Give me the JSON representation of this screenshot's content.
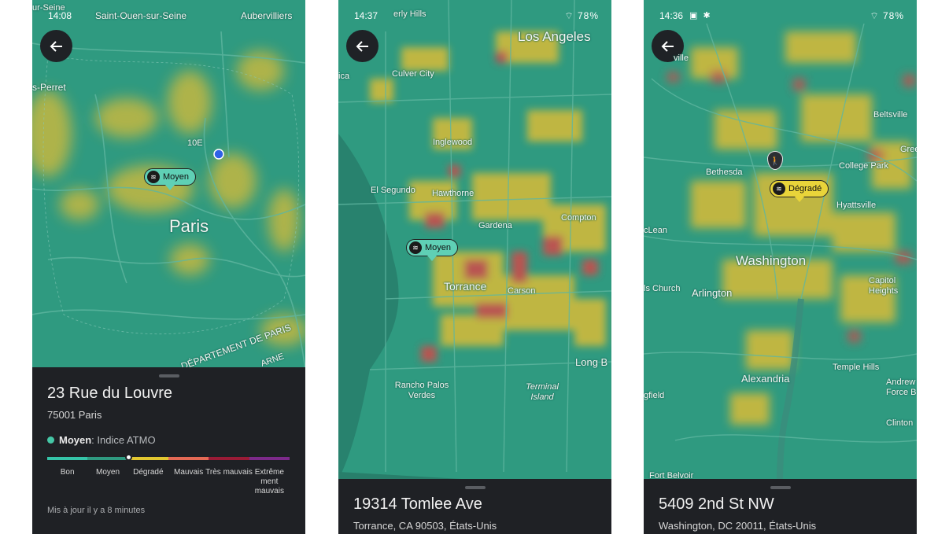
{
  "colors": {
    "good": "#35c4a8",
    "moderate": "#2f9a80",
    "degraded": "#e2c730",
    "bad": "#e46a55",
    "very_bad": "#9a1b36",
    "extreme": "#7c2a8a",
    "sheet": "#1f2125"
  },
  "screens": [
    {
      "status": {
        "time": "14:08",
        "left_place": "Saint-Ouen-sur-Seine",
        "right_place": "Aubervilliers",
        "top_left_place": "ur-Seine"
      },
      "map_labels": {
        "perret": "s-Perret",
        "arr10": "10E",
        "city": "Paris",
        "dept": "DÉPARTEMENT DE PARIS",
        "marne": "ARNE"
      },
      "pin": {
        "label": "Moyen"
      },
      "sheet": {
        "address": "23 Rue du Louvre",
        "postal": "75001 Paris",
        "index_level": "Moyen",
        "index_name": " : Indice ATMO",
        "levels": [
          "Bon",
          "Moyen",
          "Dégradé",
          "Mauvais",
          "Très mauvais",
          "Extrême ment mauvais"
        ],
        "current_level_index": 1,
        "updated": "Mis à jour il y a 8 minutes"
      }
    },
    {
      "status": {
        "time": "14:37",
        "top_place": "erly Hills",
        "battery": "78%"
      },
      "map_labels": {
        "los_angeles": "Los Angeles",
        "ica": "ica",
        "culver": "Culver City",
        "inglewood": "Inglewood",
        "el_segundo": "El Segundo",
        "hawthorne": "Hawthorne",
        "compton": "Compton",
        "gardena": "Gardena",
        "torrance": "Torrance",
        "carson": "Carson",
        "long_beach": "Long B",
        "rancho": "Rancho Palos Verdes",
        "terminal": "Terminal Island"
      },
      "pin": {
        "label": "Moyen"
      },
      "sheet": {
        "address": "19314 Tomlee Ave",
        "postal": "Torrance, CA 90503, États-Unis"
      }
    },
    {
      "status": {
        "time": "14:36",
        "battery": "78%"
      },
      "map_labels": {
        "ville": "ville",
        "beltsville": "Beltsville",
        "gree": "Gree",
        "bethesda": "Bethesda",
        "college_park": "College Park",
        "hyattsville": "Hyattsville",
        "mclean": "cLean",
        "washington": "Washington",
        "falls_church": "ls Church",
        "arlington": "Arlington",
        "capitol_heights": "Capitol Heights",
        "temple_hills": "Temple Hills",
        "alexandria": "Alexandria",
        "andrews": "Andrew Force B",
        "springfield": "gfield",
        "clinton": "Clinton",
        "fort_belvoir": "Fort Belvoir"
      },
      "pin": {
        "label": "Dégradé"
      },
      "sheet": {
        "address": "5409 2nd St NW",
        "postal": "Washington, DC 20011, États-Unis"
      }
    }
  ]
}
